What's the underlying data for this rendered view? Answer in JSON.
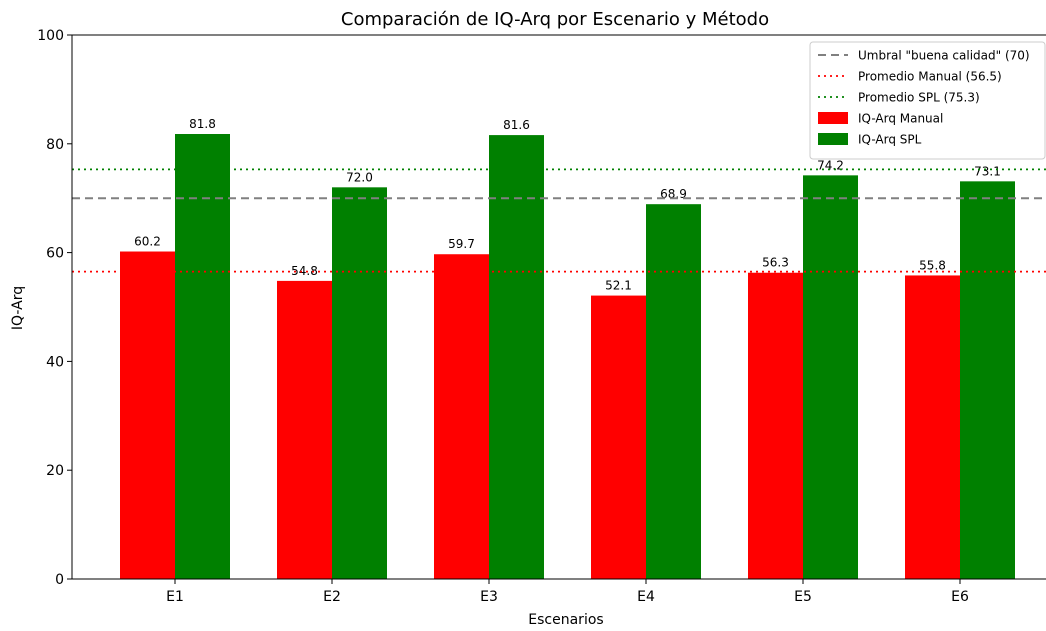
{
  "chart_data": {
    "type": "bar",
    "title": "Comparación de IQ-Arq por Escenario y Método",
    "xlabel": "Escenarios",
    "ylabel": "IQ-Arq",
    "categories": [
      "E1",
      "E2",
      "E3",
      "E4",
      "E5",
      "E6"
    ],
    "ylim": [
      0,
      100
    ],
    "yticks": [
      0,
      20,
      40,
      60,
      80,
      100
    ],
    "grid": false,
    "legend_position": "top-right",
    "series": [
      {
        "name": "IQ-Arq Manual",
        "color": "#ff0000",
        "values": [
          60.2,
          54.8,
          59.7,
          52.1,
          56.3,
          55.8
        ],
        "labels": [
          "60.2",
          "54.8",
          "59.7",
          "52.1",
          "56.3",
          "55.8"
        ]
      },
      {
        "name": "IQ-Arq SPL",
        "color": "#008000",
        "values": [
          81.8,
          72.0,
          81.6,
          68.9,
          74.2,
          73.1
        ],
        "labels": [
          "81.8",
          "72.0",
          "81.6",
          "68.9",
          "74.2",
          "73.1"
        ]
      }
    ],
    "reference_lines": [
      {
        "name": "Umbral \"buena calidad\" (70)",
        "value": 70,
        "color": "#808080",
        "style": "dashed"
      },
      {
        "name": "Promedio Manual (56.5)",
        "value": 56.5,
        "color": "#ff0000",
        "style": "dotted"
      },
      {
        "name": "Promedio SPL (75.3)",
        "value": 75.3,
        "color": "#008000",
        "style": "dotted"
      }
    ]
  }
}
